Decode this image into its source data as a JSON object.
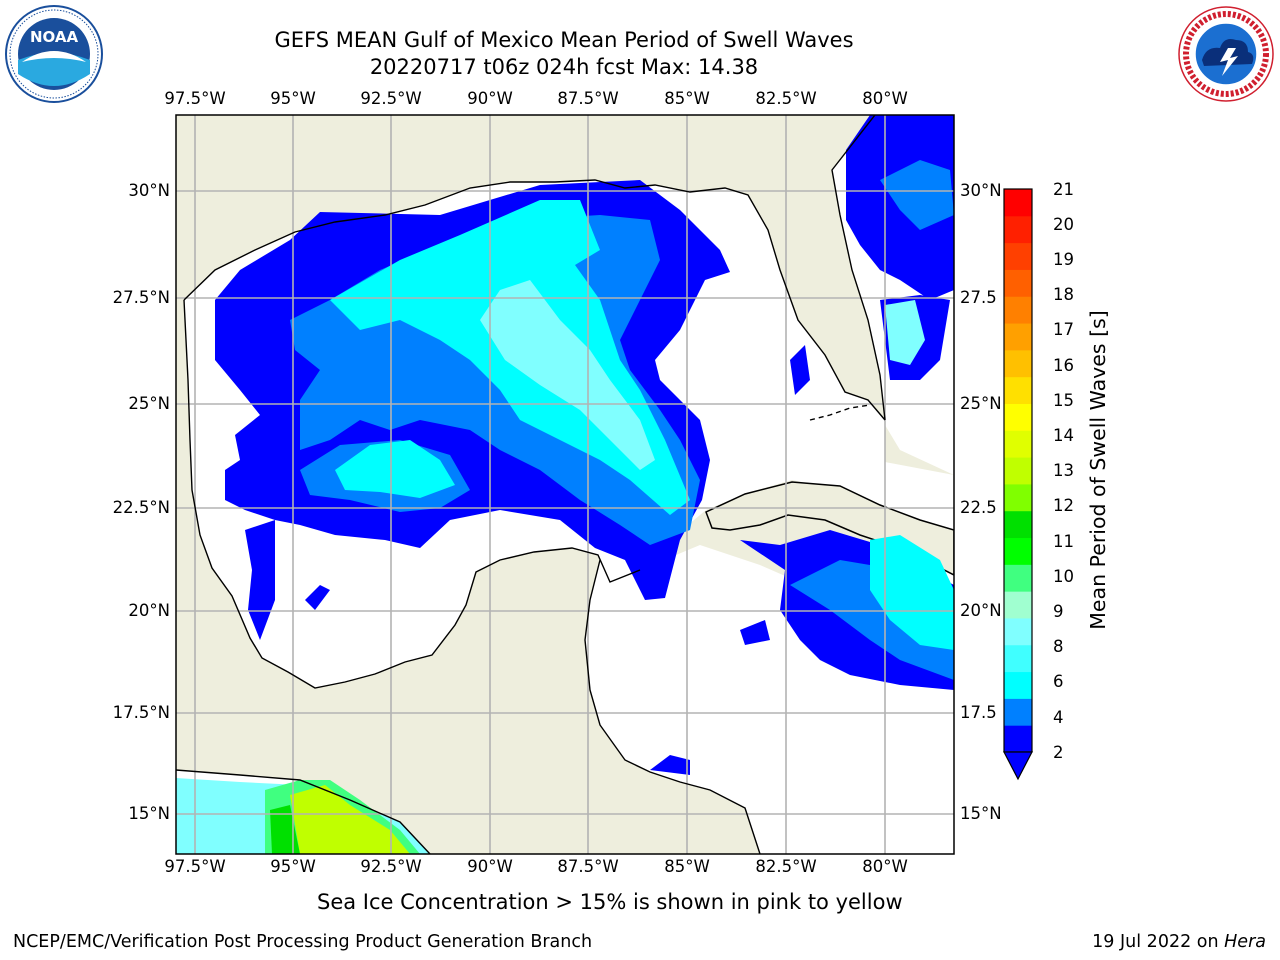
{
  "header": {
    "title_line1": "GEFS MEAN Gulf of Mexico Mean Period of Swell Waves",
    "title_line2": "20220717 t06z 024h fcst   Max: 14.38"
  },
  "logos": {
    "left": {
      "name": "noaa-logo",
      "text": "NOAA",
      "ring_text": "NATIONAL OCEANIC AND ATMOSPHERIC ADMINISTRATION · U.S. DEPARTMENT OF COMMERCE"
    },
    "right": {
      "name": "nws-logo",
      "ring_text": "NATIONAL WEATHER SERVICE"
    }
  },
  "map": {
    "x_ticks_top": [
      "97.5°W",
      "95°W",
      "92.5°W",
      "90°W",
      "87.5°W",
      "85°W",
      "82.5°W",
      "80°W"
    ],
    "x_ticks_bottom": [
      "97.5°W",
      "95°W",
      "92.5°W",
      "90°W",
      "87.5°W",
      "85°W",
      "82.5°W",
      "80°W"
    ],
    "y_ticks_left": [
      "30°N",
      "27.5°N",
      "25°N",
      "22.5°N",
      "20°N",
      "17.5°N",
      "15°N"
    ],
    "y_ticks_right": [
      "30°N",
      "27.5",
      "25°N",
      "22.5",
      "20°N",
      "17.5",
      "15°N"
    ],
    "colors": {
      "land": "#eeeedd",
      "sea": "#ffffff",
      "grid": "#b3b3b3"
    },
    "fields": [
      {
        "range": "2-4 s",
        "color": "#0000ff"
      },
      {
        "range": "4-6 s",
        "color": "#0080ff"
      },
      {
        "range": "6-8 s",
        "color": "#00ffff"
      },
      {
        "range": "8-9 s",
        "color": "#80ffff"
      },
      {
        "range": "10-14 s",
        "color": "#c0ff00"
      }
    ]
  },
  "colorbar": {
    "label": "Mean Period of Swell Waves [s]",
    "ticks": [
      "2",
      "4",
      "6",
      "8",
      "9",
      "10",
      "11",
      "12",
      "13",
      "14",
      "15",
      "16",
      "17",
      "18",
      "19",
      "20",
      "21"
    ],
    "colors": [
      "#0000ff",
      "#0080ff",
      "#00ffff",
      "#40ffff",
      "#80ffff",
      "#a0ffd0",
      "#40ff80",
      "#00ff00",
      "#00e000",
      "#80ff00",
      "#c0ff00",
      "#e0ff00",
      "#ffff00",
      "#ffe000",
      "#ffc000",
      "#ffa000",
      "#ff8000",
      "#ff6000",
      "#ff4000",
      "#ff2000",
      "#ff0000"
    ]
  },
  "footer": {
    "note": "Sea Ice Concentration > 15% is shown in pink to yellow",
    "org": "NCEP/EMC/Verification Post Processing Product Generation Branch",
    "date_prefix": "19 Jul 2022 on ",
    "machine": "Hera"
  }
}
